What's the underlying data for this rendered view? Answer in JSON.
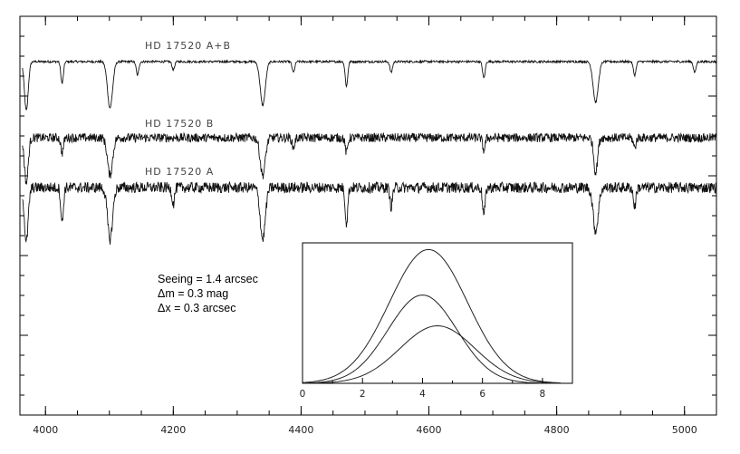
{
  "chart_data": [
    {
      "type": "line",
      "title": "",
      "xlabel": "",
      "ylabel": "",
      "xlim": [
        3960,
        5050
      ],
      "x_ticks": [
        "4000",
        "4200",
        "4400",
        "4600",
        "4800",
        "5000"
      ],
      "grid": false,
      "series": [
        {
          "name": "HD 17520 A+B",
          "continuum": 1.0,
          "noise": 0.04,
          "lines": [
            {
              "x": 3970,
              "depth": 0.9,
              "width": 3
            },
            {
              "x": 4026,
              "depth": 0.4,
              "width": 2
            },
            {
              "x": 4101,
              "depth": 0.85,
              "width": 4
            },
            {
              "x": 4144,
              "depth": 0.25,
              "width": 2
            },
            {
              "x": 4200,
              "depth": 0.15,
              "width": 2
            },
            {
              "x": 4340,
              "depth": 0.8,
              "width": 4
            },
            {
              "x": 4388,
              "depth": 0.2,
              "width": 2
            },
            {
              "x": 4471,
              "depth": 0.45,
              "width": 2
            },
            {
              "x": 4541,
              "depth": 0.2,
              "width": 2
            },
            {
              "x": 4686,
              "depth": 0.3,
              "width": 2
            },
            {
              "x": 4861,
              "depth": 0.75,
              "width": 4
            },
            {
              "x": 4922,
              "depth": 0.25,
              "width": 2
            },
            {
              "x": 5016,
              "depth": 0.2,
              "width": 2
            }
          ]
        },
        {
          "name": "HD 17520 B",
          "continuum": 1.0,
          "noise": 0.18,
          "lines": [
            {
              "x": 3970,
              "depth": 0.9,
              "width": 3
            },
            {
              "x": 4026,
              "depth": 0.3,
              "width": 2
            },
            {
              "x": 4101,
              "depth": 0.75,
              "width": 4
            },
            {
              "x": 4340,
              "depth": 0.75,
              "width": 4
            },
            {
              "x": 4388,
              "depth": 0.2,
              "width": 2
            },
            {
              "x": 4471,
              "depth": 0.3,
              "width": 2
            },
            {
              "x": 4686,
              "depth": 0.25,
              "width": 2
            },
            {
              "x": 4861,
              "depth": 0.7,
              "width": 3
            },
            {
              "x": 4922,
              "depth": 0.2,
              "width": 2
            }
          ]
        },
        {
          "name": "HD 17520 A",
          "continuum": 1.0,
          "noise": 0.2,
          "lines": [
            {
              "x": 3970,
              "depth": 1.0,
              "width": 3
            },
            {
              "x": 4026,
              "depth": 0.65,
              "width": 2
            },
            {
              "x": 4101,
              "depth": 0.95,
              "width": 4
            },
            {
              "x": 4200,
              "depth": 0.3,
              "width": 2
            },
            {
              "x": 4340,
              "depth": 0.95,
              "width": 4
            },
            {
              "x": 4471,
              "depth": 0.65,
              "width": 2
            },
            {
              "x": 4541,
              "depth": 0.35,
              "width": 2
            },
            {
              "x": 4686,
              "depth": 0.5,
              "width": 2
            },
            {
              "x": 4861,
              "depth": 0.8,
              "width": 4
            },
            {
              "x": 4922,
              "depth": 0.35,
              "width": 2
            }
          ]
        }
      ]
    },
    {
      "type": "line",
      "title": "",
      "xlabel": "",
      "ylabel": "",
      "xlim": [
        0,
        9
      ],
      "ylim": [
        0,
        1.05
      ],
      "x_ticks": [
        "0",
        "2",
        "4",
        "6",
        "8"
      ],
      "series": [
        {
          "center": 4.2,
          "sigma": 1.3,
          "amplitude": 1.0
        },
        {
          "center": 4.0,
          "sigma": 1.15,
          "amplitude": 0.66
        },
        {
          "center": 4.5,
          "sigma": 1.25,
          "amplitude": 0.43
        }
      ]
    }
  ],
  "annotations": [
    "Seeing = 1.4 arcsec",
    "Δm = 0.3 mag",
    "Δx = 0.3 arcsec"
  ]
}
